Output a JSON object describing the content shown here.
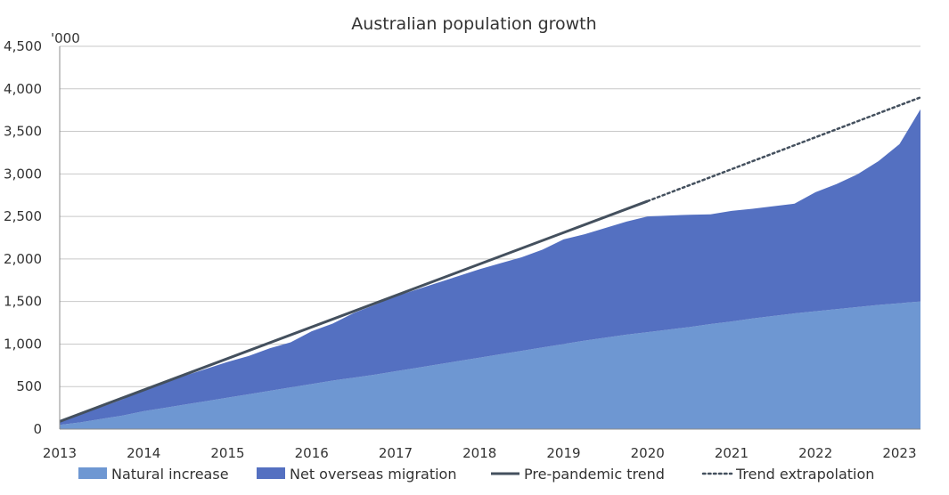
{
  "chart_data": {
    "type": "area",
    "title": "Australian population growth",
    "ylabel": "'000",
    "xlabel": "",
    "ylim": [
      0,
      4500
    ],
    "xlim": [
      2013,
      2023.25
    ],
    "y_ticks": [
      0,
      500,
      1000,
      1500,
      2000,
      2500,
      3000,
      3500,
      4000,
      4500
    ],
    "y_tick_labels": [
      "0",
      "500",
      "1,000",
      "1,500",
      "2,000",
      "2,500",
      "3,000",
      "3,500",
      "4,000",
      "4,500"
    ],
    "x_ticks": [
      2013,
      2014,
      2015,
      2016,
      2017,
      2018,
      2019,
      2020,
      2021,
      2022,
      2023
    ],
    "x_tick_labels": [
      "2013",
      "2014",
      "2015",
      "2016",
      "2017",
      "2018",
      "2019",
      "2020",
      "2021",
      "2022",
      "2023"
    ],
    "grid": true,
    "legend_position": "bottom",
    "x": [
      2013,
      2013.25,
      2013.5,
      2013.75,
      2014,
      2014.25,
      2014.5,
      2014.75,
      2015,
      2015.25,
      2015.5,
      2015.75,
      2016,
      2016.25,
      2016.5,
      2016.75,
      2017,
      2017.25,
      2017.5,
      2017.75,
      2018,
      2018.25,
      2018.5,
      2018.75,
      2019,
      2019.25,
      2019.5,
      2019.75,
      2020,
      2020.25,
      2020.5,
      2020.75,
      2021,
      2021.25,
      2021.5,
      2021.75,
      2022,
      2022.25,
      2022.5,
      2022.75,
      2023,
      2023.25
    ],
    "series": [
      {
        "name": "Natural increase",
        "kind": "stacked-area",
        "color": "#6e97d2",
        "values": [
          50,
          80,
          120,
          160,
          210,
          250,
          290,
          330,
          370,
          410,
          450,
          490,
          530,
          570,
          605,
          640,
          680,
          720,
          760,
          800,
          840,
          880,
          920,
          960,
          1000,
          1040,
          1075,
          1110,
          1140,
          1170,
          1200,
          1235,
          1265,
          1300,
          1330,
          1360,
          1385,
          1410,
          1435,
          1460,
          1480,
          1500
        ]
      },
      {
        "name": "Net overseas migration",
        "kind": "stacked-area",
        "color": "#5470c1",
        "values": [
          30,
          100,
          140,
          190,
          250,
          290,
          340,
          380,
          420,
          450,
          500,
          530,
          620,
          670,
          760,
          820,
          880,
          920,
          960,
          1000,
          1040,
          1070,
          1100,
          1150,
          1230,
          1250,
          1290,
          1330,
          1360,
          1340,
          1320,
          1290,
          1300,
          1290,
          1290,
          1290,
          1400,
          1470,
          1560,
          1690,
          1870,
          2260
        ]
      },
      {
        "name": "Pre-pandemic trend",
        "kind": "line",
        "color": "#44505e",
        "x": [
          2013,
          2020.0
        ],
        "values": [
          90,
          2680
        ]
      },
      {
        "name": "Trend extrapolation",
        "kind": "dotted-line",
        "color": "#44505e",
        "x": [
          2020.0,
          2023.25
        ],
        "values": [
          2680,
          3900
        ]
      }
    ]
  }
}
